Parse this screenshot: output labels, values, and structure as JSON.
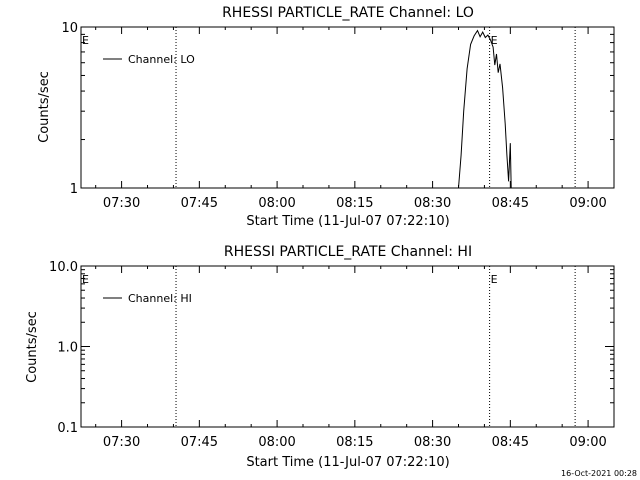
{
  "footer_timestamp": "16-Oct-2021 00:28",
  "chart_data": [
    {
      "type": "line",
      "title": "RHESSI PARTICLE_RATE Channel: LO",
      "xlabel": "Start Time (11-Jul-07 07:22:10)",
      "ylabel": "Counts/sec",
      "yscale": "log",
      "ylim": [
        1,
        10
      ],
      "xlim": [
        "07:22:10",
        "09:05:00"
      ],
      "x_tick_labels": [
        "07:30",
        "07:45",
        "08:00",
        "08:15",
        "08:30",
        "08:45",
        "09:00"
      ],
      "y_tick_labels": [
        {
          "value": 10,
          "label": "10"
        },
        {
          "value": 1,
          "label": "1"
        }
      ],
      "legend": {
        "placement": "top-left",
        "entries": [
          "Channel: LO"
        ]
      },
      "vertical_lines": [
        "07:40:30",
        "08:41:00",
        "08:57:30"
      ],
      "markers": [
        {
          "label": "E",
          "x": "07:22:10",
          "y": 8.5
        },
        {
          "label": "E",
          "x": "08:41:00",
          "y": 8.5
        }
      ],
      "series": [
        {
          "name": "Channel: LO",
          "points": [
            [
              "08:35:00",
              1.0
            ],
            [
              "08:35:30",
              1.6
            ],
            [
              "08:36:00",
              3.0
            ],
            [
              "08:36:40",
              5.5
            ],
            [
              "08:37:20",
              7.8
            ],
            [
              "08:38:00",
              8.8
            ],
            [
              "08:38:40",
              9.5
            ],
            [
              "08:39:10",
              8.7
            ],
            [
              "08:39:40",
              9.3
            ],
            [
              "08:40:10",
              8.6
            ],
            [
              "08:40:40",
              8.9
            ],
            [
              "08:41:10",
              8.3
            ],
            [
              "08:41:40",
              7.5
            ],
            [
              "08:42:00",
              5.8
            ],
            [
              "08:42:20",
              6.8
            ],
            [
              "08:42:40",
              5.2
            ],
            [
              "08:43:00",
              5.9
            ],
            [
              "08:43:30",
              4.2
            ],
            [
              "08:44:00",
              2.5
            ],
            [
              "08:44:20",
              1.6
            ],
            [
              "08:44:40",
              1.1
            ],
            [
              "08:45:00",
              1.9
            ],
            [
              "08:45:10",
              1.0
            ]
          ]
        }
      ]
    },
    {
      "type": "line",
      "title": "RHESSI PARTICLE_RATE Channel: HI",
      "xlabel": "Start Time (11-Jul-07 07:22:10)",
      "ylabel": "Counts/sec",
      "yscale": "log",
      "ylim": [
        0.1,
        10
      ],
      "xlim": [
        "07:22:10",
        "09:05:00"
      ],
      "x_tick_labels": [
        "07:30",
        "07:45",
        "08:00",
        "08:15",
        "08:30",
        "08:45",
        "09:00"
      ],
      "y_tick_labels": [
        {
          "value": 10,
          "label": "10.0"
        },
        {
          "value": 1,
          "label": "1.0"
        },
        {
          "value": 0.1,
          "label": "0.1"
        }
      ],
      "legend": {
        "placement": "top-left",
        "entries": [
          "Channel: HI"
        ]
      },
      "vertical_lines": [
        "07:40:30",
        "08:41:00",
        "08:57:30"
      ],
      "markers": [
        {
          "label": "E",
          "x": "07:22:10",
          "y": 8.5
        },
        {
          "label": "E",
          "x": "08:41:00",
          "y": 8.5
        }
      ],
      "series": [
        {
          "name": "Channel: HI",
          "points": []
        }
      ]
    }
  ]
}
